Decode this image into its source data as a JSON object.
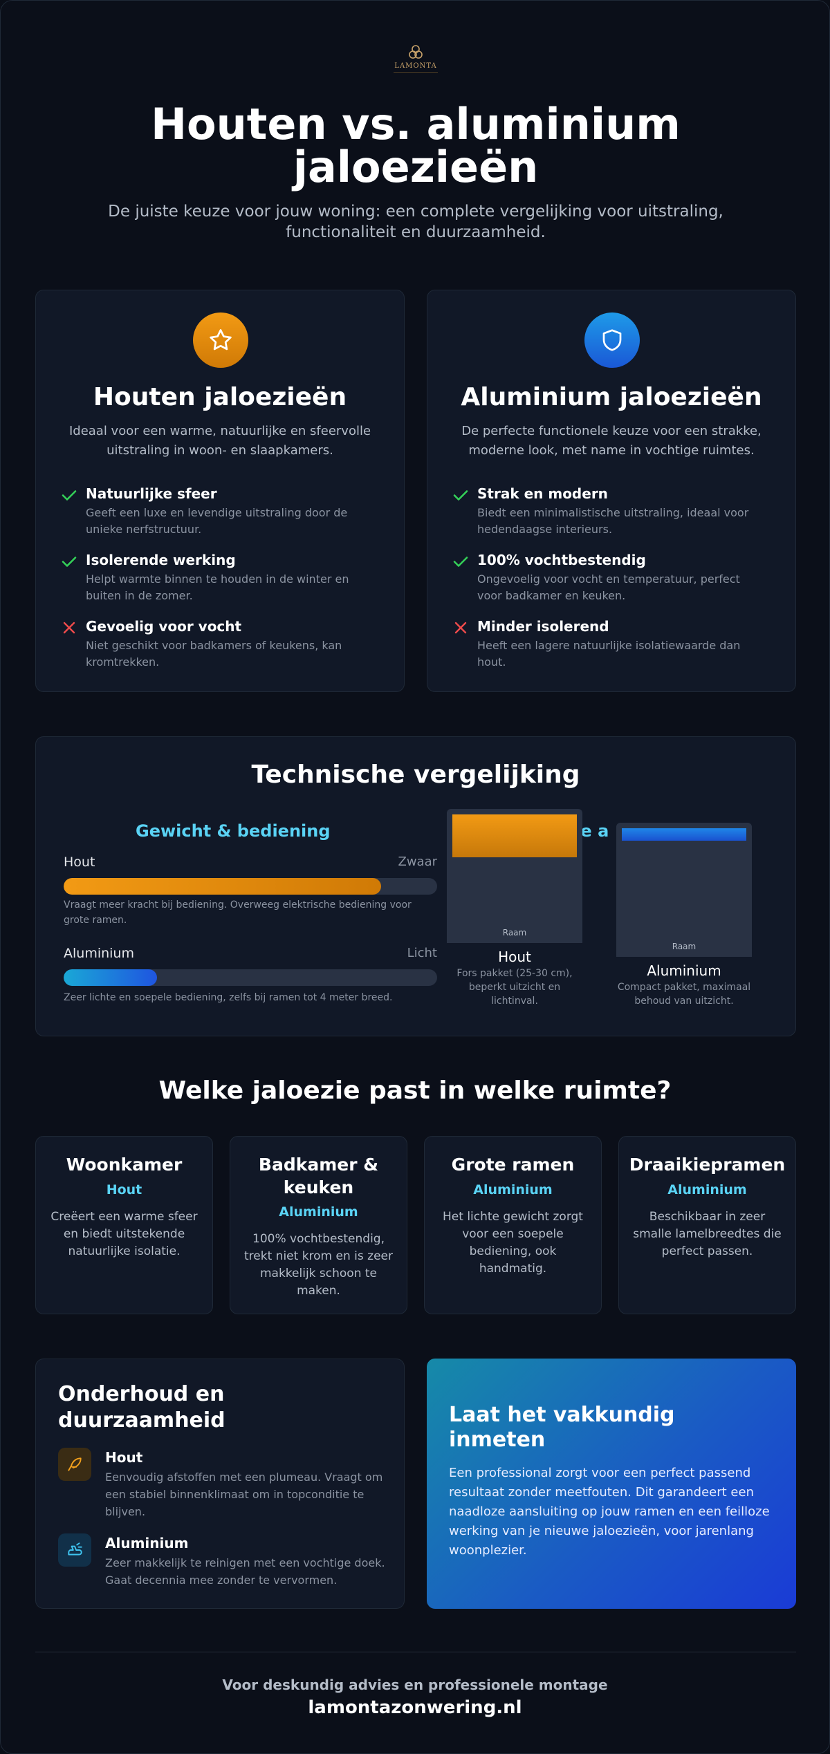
{
  "logo": {
    "brand": "LAMONTA"
  },
  "header": {
    "title_line1": "Houten vs. aluminium",
    "title_line2": "jaloezieën",
    "subtitle": "De juiste keuze voor jouw woning: een complete vergelijking voor uitstraling, functionaliteit en duurzaamheid.",
    "colors": {
      "wood": "#e8900c",
      "aluminium": "#1f7fe0",
      "cyan": "#5ad3f5",
      "check": "#34d058",
      "cross": "#ef4b4b"
    }
  },
  "wood_card": {
    "icon": "star-icon",
    "title": "Houten jaloezieën",
    "desc": "Ideaal voor een warme, natuurlijke en sfeervolle uitstraling in woon- en slaapkamers.",
    "features": [
      {
        "type": "pro",
        "icon": "check-icon",
        "title": "Natuurlijke sfeer",
        "desc": "Geeft een luxe en levendige uitstraling door de unieke nerfstructuur."
      },
      {
        "type": "pro",
        "icon": "check-icon",
        "title": "Isolerende werking",
        "desc": "Helpt warmte binnen te houden in de winter en buiten in de zomer."
      },
      {
        "type": "con",
        "icon": "cross-icon",
        "title": "Gevoelig voor vocht",
        "desc": "Niet geschikt voor badkamers of keukens, kan kromtrekken."
      }
    ]
  },
  "alu_card": {
    "icon": "shield-icon",
    "title": "Aluminium jaloezieën",
    "desc": "De perfecte functionele keuze voor een strakke, moderne look, met name in vochtige ruimtes.",
    "features": [
      {
        "type": "pro",
        "icon": "check-icon",
        "title": "Strak en modern",
        "desc": "Biedt een minimalistische uitstraling, ideaal voor hedendaagse interieurs."
      },
      {
        "type": "pro",
        "icon": "check-icon",
        "title": "100% vochtbestendig",
        "desc": "Ongevoelig voor vocht en temperatuur, perfect voor badkamer en keuken."
      },
      {
        "type": "con",
        "icon": "cross-icon",
        "title": "Minder isolerend",
        "desc": "Heeft een lagere natuurlijke isolatiewaarde dan hout."
      }
    ]
  },
  "technical": {
    "title": "Technische vergelijking",
    "weight": {
      "heading": "Gewicht & bediening",
      "rows": [
        {
          "label": "Hout",
          "value": "Zwaar",
          "level": 0.85,
          "note": "Vraagt meer kracht bij bediening. Overweeg elektrische bediening voor grote ramen."
        },
        {
          "label": "Aluminium",
          "value": "Licht",
          "level": 0.25,
          "note": "Zeer lichte en soepele bediening, zelfs bij ramen tot 4 meter breed."
        }
      ]
    },
    "package": {
      "heading_fragment": "kte a",
      "items": [
        {
          "window_label": "Raam",
          "name": "Hout",
          "desc_line1": "Fors pakket (25-30 cm),",
          "desc_line2": "beperkt uitzicht en",
          "desc_line3": "lichtinval."
        },
        {
          "window_label": "Raam",
          "name": "Aluminium",
          "desc_line1": "Compact pakket, maximaal",
          "desc_line2": "behoud van uitzicht.",
          "desc_line3": ""
        }
      ]
    }
  },
  "rooms": {
    "title": "Welke jaloezie past in welke ruimte?",
    "items": [
      {
        "title_line1": "Woonkamer",
        "title_line2": "",
        "type": "Hout",
        "desc": "Creëert een warme sfeer en biedt uitstekende natuurlijke isolatie."
      },
      {
        "title_line1": "Badkamer &",
        "title_line2": "keuken",
        "type": "Aluminium",
        "desc": "100% vochtbestendig, trekt niet krom en is zeer makkelijk schoon te maken."
      },
      {
        "title_line1": "Grote ramen",
        "title_line2": "",
        "type": "Aluminium",
        "desc": "Het lichte gewicht zorgt voor een soepele bediening, ook handmatig."
      },
      {
        "title_line1": "Draaikiepramen",
        "title_line2": "",
        "type": "Aluminium",
        "desc": "Beschikbaar in zeer smalle lamelbreedtes die perfect passen."
      }
    ]
  },
  "maintenance": {
    "title_line1": "Onderhoud en",
    "title_line2": "duurzaamheid",
    "items": [
      {
        "icon": "feather-icon",
        "title": "Hout",
        "desc": "Eenvoudig afstoffen met een plumeau. Vraagt om een stabiel binnenklimaat om in topconditie te blijven."
      },
      {
        "icon": "cleaning-icon",
        "title": "Aluminium",
        "desc": "Zeer makkelijk te reinigen met een vochtige doek. Gaat decennia mee zonder te vervormen."
      }
    ]
  },
  "cta": {
    "title_line1": "Laat het vakkundig",
    "title_line2": "inmeten",
    "text": "Een professional zorgt voor een perfect passend resultaat zonder meetfouten. Dit garandeert een naadloze aansluiting op jouw ramen en een feilloze werking van je nieuwe jaloezieën, voor jarenlang woonplezier."
  },
  "footer": {
    "tagline": "Voor deskundig advies en professionele montage",
    "url": "lamontazonwering.nl"
  }
}
